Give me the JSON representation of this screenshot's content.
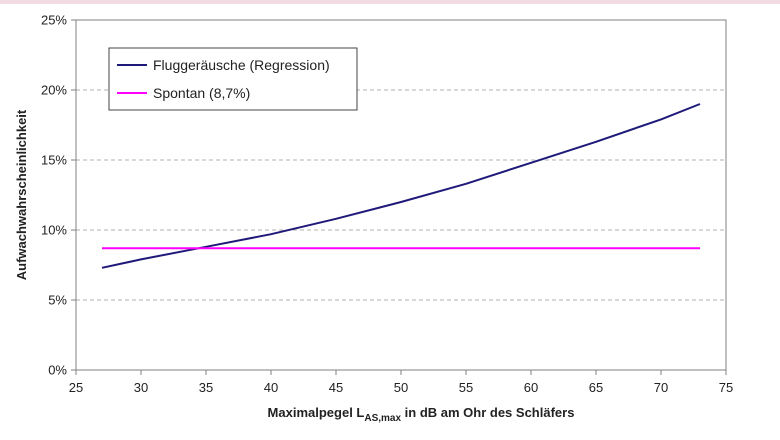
{
  "chart_data": {
    "type": "line",
    "title": "",
    "xlabel": {
      "main": "Maximalpegel L",
      "subscript": "AS,max",
      "rest": " in dB am Ohr des Schläfers"
    },
    "ylabel": "Aufwachwahrscheinlichkeit",
    "xlim": [
      25,
      75
    ],
    "ylim": [
      0,
      25
    ],
    "x_ticks": [
      "25",
      "30",
      "35",
      "40",
      "45",
      "50",
      "55",
      "60",
      "65",
      "70",
      "75"
    ],
    "y_ticks": [
      "0%",
      "5%",
      "10%",
      "15%",
      "20%",
      "25%"
    ],
    "grid": "horizontal dashed",
    "legend_position": "top-left",
    "series": [
      {
        "name": "Fluggeräusche (Regression)",
        "color": "#1f1a7a",
        "x": [
          27,
          30,
          35,
          40,
          45,
          50,
          55,
          60,
          65,
          70,
          73
        ],
        "y": [
          7.3,
          7.9,
          8.8,
          9.7,
          10.8,
          12.0,
          13.3,
          14.8,
          16.3,
          17.9,
          19.0
        ]
      },
      {
        "name": "Spontan (8,7%)",
        "color": "#ff00ff",
        "x": [
          27,
          73
        ],
        "y": [
          8.7,
          8.7
        ]
      }
    ]
  }
}
